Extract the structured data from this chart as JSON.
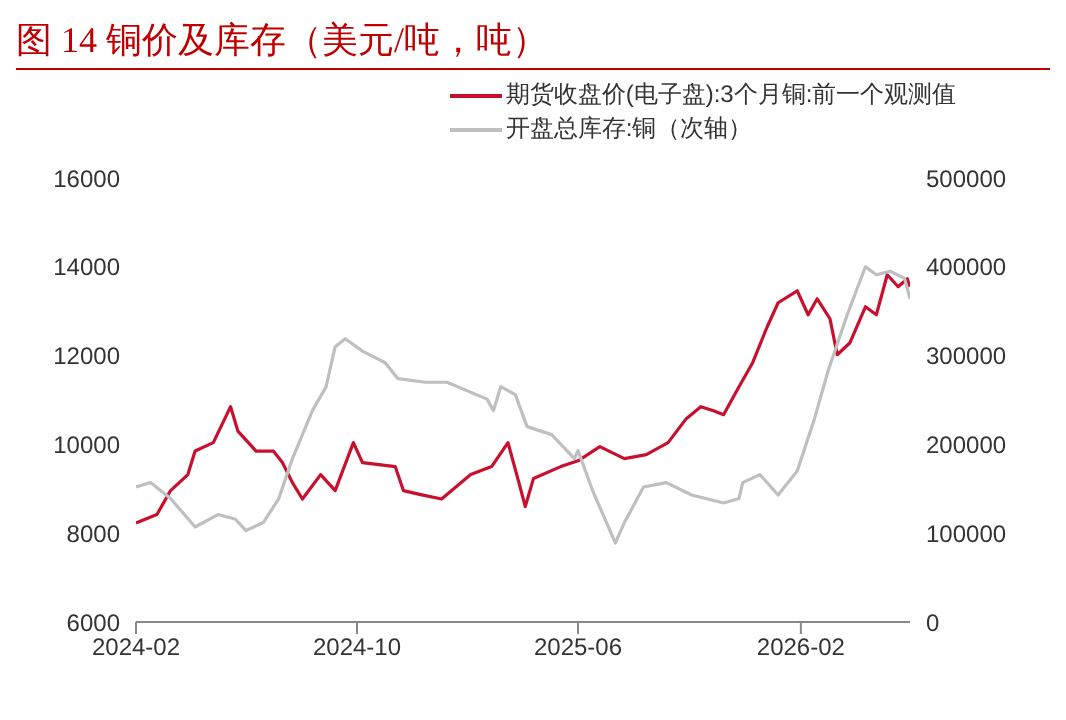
{
  "chart_data": {
    "type": "line",
    "title": "图 14 铜价及库存（美元/吨，吨）",
    "legend": "top",
    "marker": "none",
    "line_style": "solid",
    "xlim": [
      "2024-02",
      "2026-06"
    ],
    "xticks": [
      "2024-02",
      "2024-10",
      "2025-06",
      "2026-02"
    ],
    "ylim": [
      6000,
      16000
    ],
    "yticks": [
      6000,
      8000,
      10000,
      12000,
      14000,
      16000
    ],
    "y2lim": [
      0,
      500000
    ],
    "y2ticks": [
      0,
      100000,
      200000,
      300000,
      400000,
      500000
    ],
    "series": [
      {
        "name": "期货收盘价(电子盘):3个月铜:前一个观测值",
        "color": "#c8102e",
        "x": [
          "2024-02-01",
          "2024-02-24",
          "2024-03-10",
          "2024-03-29",
          "2024-04-06",
          "2024-04-26",
          "2024-05-15",
          "2024-05-23",
          "2024-06-12",
          "2024-07-01",
          "2024-07-11",
          "2024-07-22",
          "2024-08-02",
          "2024-08-22",
          "2024-09-07",
          "2024-09-27",
          "2024-10-07",
          "2024-11-12",
          "2024-11-21",
          "2024-12-10",
          "2025-01-02",
          "2025-02-03",
          "2025-02-26",
          "2025-03-16",
          "2025-03-28",
          "2025-04-04",
          "2025-04-13",
          "2025-05-13",
          "2025-06-01",
          "2025-06-25",
          "2025-07-22",
          "2025-08-15",
          "2025-09-08",
          "2025-09-28",
          "2025-10-14",
          "2025-10-28",
          "2025-11-08",
          "2025-11-25",
          "2025-12-10",
          "2025-12-26",
          "2026-01-07",
          "2026-01-28",
          "2026-02-09",
          "2026-02-19",
          "2026-03-05",
          "2026-03-13",
          "2026-03-27",
          "2026-04-13",
          "2026-04-25",
          "2026-05-07",
          "2026-05-19",
          "2026-05-29",
          "2026-06-01"
        ],
        "values": [
          8230,
          8420,
          8960,
          9320,
          9850,
          10040,
          10850,
          10300,
          9850,
          9850,
          9590,
          9140,
          8770,
          9320,
          8960,
          10040,
          9590,
          9500,
          8960,
          8870,
          8770,
          9320,
          9500,
          10040,
          9140,
          8600,
          9230,
          9500,
          9630,
          9950,
          9680,
          9770,
          10040,
          10580,
          10850,
          10760,
          10670,
          11300,
          11840,
          12650,
          13190,
          13460,
          12920,
          13280,
          12830,
          12020,
          12290,
          13100,
          12920,
          13820,
          13550,
          13730,
          13550
        ]
      },
      {
        "name": "开盘总库存:铜（次轴）",
        "color": "#bfbfbf",
        "axis": "y2",
        "x": [
          "2024-02-01",
          "2024-02-17",
          "2024-03-10",
          "2024-04-06",
          "2024-05-01",
          "2024-05-20",
          "2024-06-01",
          "2024-06-20",
          "2024-07-07",
          "2024-07-22",
          "2024-08-13",
          "2024-08-28",
          "2024-09-07",
          "2024-09-18",
          "2024-10-07",
          "2024-11-01",
          "2024-11-15",
          "2024-12-15",
          "2025-01-08",
          "2025-02-21",
          "2025-02-28",
          "2025-03-08",
          "2025-03-24",
          "2025-04-06",
          "2025-05-03",
          "2025-05-28",
          "2025-06-01",
          "2025-06-17",
          "2025-07-12",
          "2025-07-22",
          "2025-08-12",
          "2025-09-06",
          "2025-10-04",
          "2025-11-08",
          "2025-11-25",
          "2025-11-29",
          "2025-12-18",
          "2026-01-07",
          "2026-01-28",
          "2026-02-16",
          "2026-03-03",
          "2026-03-24",
          "2026-04-13",
          "2026-04-25",
          "2026-05-10",
          "2026-05-26",
          "2026-06-01"
        ],
        "values": [
          152000,
          157000,
          139000,
          107000,
          121000,
          116000,
          103000,
          112000,
          139000,
          184000,
          238000,
          265000,
          310000,
          319000,
          305000,
          292000,
          274000,
          270000,
          270000,
          251000,
          238000,
          265000,
          256000,
          220000,
          211000,
          184000,
          193000,
          148000,
          89000,
          112000,
          152000,
          157000,
          143000,
          134000,
          139000,
          157000,
          166000,
          143000,
          170000,
          229000,
          283000,
          346000,
          400000,
          391000,
          395000,
          387000,
          364000
        ]
      }
    ]
  }
}
